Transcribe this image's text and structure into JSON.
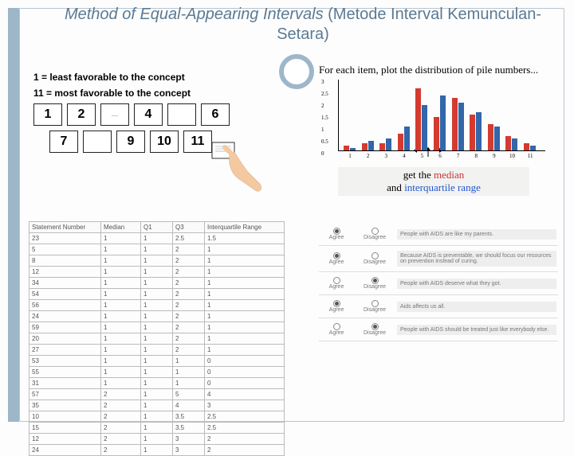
{
  "title": {
    "italic": "Method of Equal-Appearing Intervals",
    "rest": " (Metode Interval Kemunculan-Setara)"
  },
  "concept": {
    "line1": "1 = least favorable to the concept",
    "line2": "11 = most favorable to the concept",
    "row1": [
      "1",
      "2",
      "___",
      "4",
      "",
      "6"
    ],
    "row2": [
      "7",
      "",
      "9",
      "10",
      "11"
    ]
  },
  "chart": {
    "title": "For each item, plot the distribution of pile numbers...",
    "caption_prefix": "get the ",
    "caption_median": "median",
    "caption_and": " and ",
    "caption_iqr": "interquartile range",
    "ylim": [
      0,
      3
    ],
    "ytick_step": 0.5,
    "yticks": [
      "0",
      "0.5",
      "1",
      "1.5",
      "2",
      "2.5",
      "3"
    ],
    "xlabels": [
      "1",
      "2",
      "3",
      "4",
      "5",
      "6",
      "7",
      "8",
      "9",
      "10",
      "11"
    ],
    "red": [
      0.2,
      0.3,
      0.3,
      0.7,
      2.6,
      1.4,
      2.2,
      1.5,
      1.1,
      0.6,
      0.3
    ],
    "blue": [
      0.1,
      0.4,
      0.5,
      1.0,
      1.9,
      2.3,
      2.0,
      1.6,
      1.0,
      0.5,
      0.2
    ],
    "bar_colors": {
      "red": "#d43a2f",
      "blue": "#3366aa"
    },
    "grid_color": "#e0e0e0"
  },
  "table": {
    "columns": [
      "Statement Number",
      "Median",
      "Q1",
      "Q3",
      "Interquartile Range"
    ],
    "rows": [
      [
        "23",
        "1",
        "1",
        "2.5",
        "1.5"
      ],
      [
        "5",
        "1",
        "1",
        "2",
        "1"
      ],
      [
        "8",
        "1",
        "1",
        "2",
        "1"
      ],
      [
        "12",
        "1",
        "1",
        "2",
        "1"
      ],
      [
        "34",
        "1",
        "1",
        "2",
        "1"
      ],
      [
        "54",
        "1",
        "1",
        "2",
        "1"
      ],
      [
        "56",
        "1",
        "1",
        "2",
        "1"
      ],
      [
        "24",
        "1",
        "1",
        "2",
        "1"
      ],
      [
        "59",
        "1",
        "1",
        "2",
        "1"
      ],
      [
        "20",
        "1",
        "1",
        "2",
        "1"
      ],
      [
        "27",
        "1",
        "1",
        "2",
        "1"
      ],
      [
        "53",
        "1",
        "1",
        "1",
        "0"
      ],
      [
        "55",
        "1",
        "1",
        "1",
        "0"
      ],
      [
        "31",
        "1",
        "1",
        "1",
        "0"
      ],
      [
        "57",
        "2",
        "1",
        "5",
        "4"
      ],
      [
        "35",
        "2",
        "1",
        "4",
        "3"
      ],
      [
        "10",
        "2",
        "1",
        "3.5",
        "2.5"
      ],
      [
        "15",
        "2",
        "1",
        "3.5",
        "2.5"
      ],
      [
        "12",
        "2",
        "1",
        "3",
        "2"
      ],
      [
        "24",
        "2",
        "1",
        "3",
        "2"
      ]
    ]
  },
  "survey": {
    "options": [
      "Agree",
      "Disagree"
    ],
    "items": [
      {
        "text": "People with AIDS are like my parents.",
        "checked": 0
      },
      {
        "text": "Because AIDS is preventable, we should focus our resources on prevention instead of curing.",
        "checked": 0
      },
      {
        "text": "People with AIDS deserve what they got.",
        "checked": 1
      },
      {
        "text": "Aids affects us all.",
        "checked": 0
      },
      {
        "text": "People with AIDS should be treated just like everybody else.",
        "checked": 1
      }
    ]
  }
}
